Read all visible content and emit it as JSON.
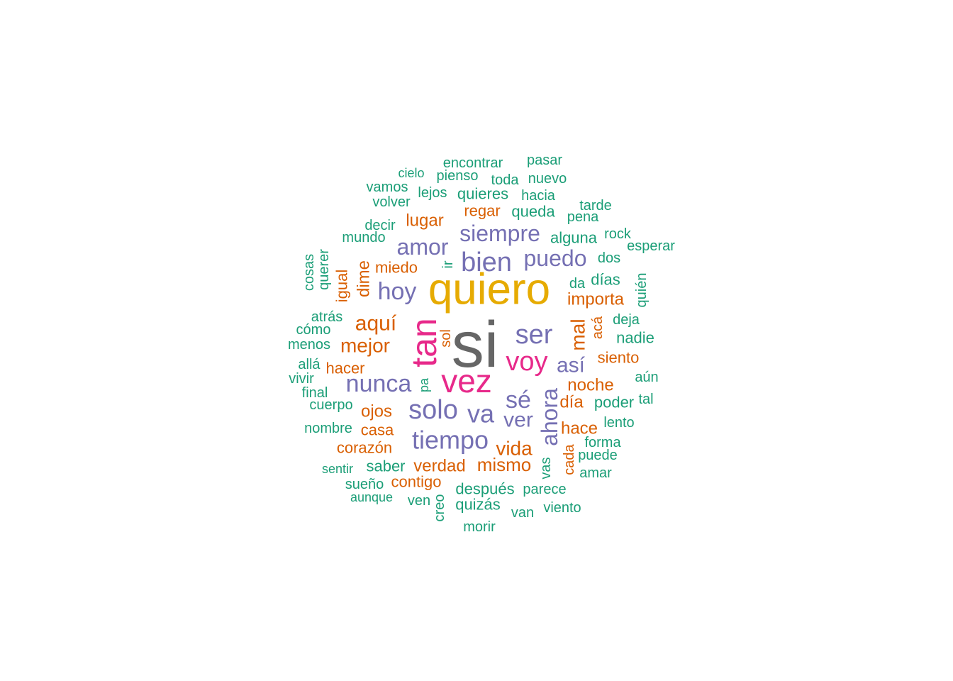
{
  "chart_data": {
    "type": "wordcloud",
    "colors": {
      "g1": "#666666",
      "g2": "#E6AB02",
      "g3": "#E7298A",
      "g4": "#7570B3",
      "g5": "#D95F02",
      "g6": "#1B9E77"
    },
    "words": [
      {
        "text": "si",
        "group": "g1"
      },
      {
        "text": "quiero",
        "group": "g2"
      },
      {
        "text": "tan",
        "group": "g3"
      },
      {
        "text": "vez",
        "group": "g3"
      },
      {
        "text": "voy",
        "group": "g3"
      },
      {
        "text": "bien",
        "group": "g4"
      },
      {
        "text": "ser",
        "group": "g4"
      },
      {
        "text": "solo",
        "group": "g4"
      },
      {
        "text": "nunca",
        "group": "g4"
      },
      {
        "text": "tiempo",
        "group": "g4"
      },
      {
        "text": "siempre",
        "group": "g4"
      },
      {
        "text": "puedo",
        "group": "g4"
      },
      {
        "text": "amor",
        "group": "g4"
      },
      {
        "text": "hoy",
        "group": "g4"
      },
      {
        "text": "va",
        "group": "g4"
      },
      {
        "text": "sé",
        "group": "g4"
      },
      {
        "text": "ahora",
        "group": "g4"
      },
      {
        "text": "ver",
        "group": "g4"
      },
      {
        "text": "así",
        "group": "g4"
      },
      {
        "text": "aquí",
        "group": "g5"
      },
      {
        "text": "mejor",
        "group": "g5"
      },
      {
        "text": "mal",
        "group": "g5"
      },
      {
        "text": "vida",
        "group": "g5"
      },
      {
        "text": "mismo",
        "group": "g5"
      },
      {
        "text": "noche",
        "group": "g5"
      },
      {
        "text": "verdad",
        "group": "g5"
      },
      {
        "text": "importa",
        "group": "g5"
      },
      {
        "text": "dime",
        "group": "g5"
      },
      {
        "text": "lugar",
        "group": "g5"
      },
      {
        "text": "ojos",
        "group": "g5"
      },
      {
        "text": "día",
        "group": "g5"
      },
      {
        "text": "hace",
        "group": "g5"
      },
      {
        "text": "siento",
        "group": "g5"
      },
      {
        "text": "hacer",
        "group": "g5"
      },
      {
        "text": "miedo",
        "group": "g5"
      },
      {
        "text": "regar",
        "group": "g5"
      },
      {
        "text": "casa",
        "group": "g5"
      },
      {
        "text": "corazón",
        "group": "g5"
      },
      {
        "text": "contigo",
        "group": "g5"
      },
      {
        "text": "igual",
        "group": "g5"
      },
      {
        "text": "sol",
        "group": "g5"
      },
      {
        "text": "acá",
        "group": "g5"
      },
      {
        "text": "cada",
        "group": "g5"
      },
      {
        "text": "encontrar",
        "group": "g6"
      },
      {
        "text": "pasar",
        "group": "g6"
      },
      {
        "text": "cielo",
        "group": "g6"
      },
      {
        "text": "pienso",
        "group": "g6"
      },
      {
        "text": "toda",
        "group": "g6"
      },
      {
        "text": "nuevo",
        "group": "g6"
      },
      {
        "text": "vamos",
        "group": "g6"
      },
      {
        "text": "lejos",
        "group": "g6"
      },
      {
        "text": "quieres",
        "group": "g6"
      },
      {
        "text": "hacia",
        "group": "g6"
      },
      {
        "text": "volver",
        "group": "g6"
      },
      {
        "text": "tarde",
        "group": "g6"
      },
      {
        "text": "queda",
        "group": "g6"
      },
      {
        "text": "pena",
        "group": "g6"
      },
      {
        "text": "decir",
        "group": "g6"
      },
      {
        "text": "mundo",
        "group": "g6"
      },
      {
        "text": "alguna",
        "group": "g6"
      },
      {
        "text": "rock",
        "group": "g6"
      },
      {
        "text": "esperar",
        "group": "g6"
      },
      {
        "text": "dos",
        "group": "g6"
      },
      {
        "text": "cosas",
        "group": "g6"
      },
      {
        "text": "querer",
        "group": "g6"
      },
      {
        "text": "ir",
        "group": "g6"
      },
      {
        "text": "da",
        "group": "g6"
      },
      {
        "text": "días",
        "group": "g6"
      },
      {
        "text": "quién",
        "group": "g6"
      },
      {
        "text": "atrás",
        "group": "g6"
      },
      {
        "text": "deja",
        "group": "g6"
      },
      {
        "text": "cómo",
        "group": "g6"
      },
      {
        "text": "nadie",
        "group": "g6"
      },
      {
        "text": "menos",
        "group": "g6"
      },
      {
        "text": "allá",
        "group": "g6"
      },
      {
        "text": "aún",
        "group": "g6"
      },
      {
        "text": "vivir",
        "group": "g6"
      },
      {
        "text": "pa",
        "group": "g6"
      },
      {
        "text": "final",
        "group": "g6"
      },
      {
        "text": "poder",
        "group": "g6"
      },
      {
        "text": "tal",
        "group": "g6"
      },
      {
        "text": "cuerpo",
        "group": "g6"
      },
      {
        "text": "lento",
        "group": "g6"
      },
      {
        "text": "nombre",
        "group": "g6"
      },
      {
        "text": "forma",
        "group": "g6"
      },
      {
        "text": "puede",
        "group": "g6"
      },
      {
        "text": "sentir",
        "group": "g6"
      },
      {
        "text": "saber",
        "group": "g6"
      },
      {
        "text": "vas",
        "group": "g6"
      },
      {
        "text": "amar",
        "group": "g6"
      },
      {
        "text": "sueño",
        "group": "g6"
      },
      {
        "text": "después",
        "group": "g6"
      },
      {
        "text": "parece",
        "group": "g6"
      },
      {
        "text": "aunque",
        "group": "g6"
      },
      {
        "text": "ven",
        "group": "g6"
      },
      {
        "text": "creo",
        "group": "g6"
      },
      {
        "text": "quizás",
        "group": "g6"
      },
      {
        "text": "van",
        "group": "g6"
      },
      {
        "text": "viento",
        "group": "g6"
      },
      {
        "text": "morir",
        "group": "g6"
      }
    ]
  }
}
